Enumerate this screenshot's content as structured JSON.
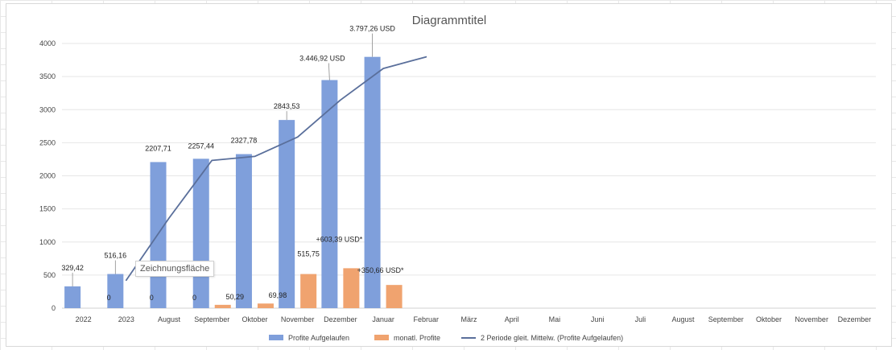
{
  "chart_data": {
    "type": "bar",
    "title": "Diagrammtitel",
    "categories": [
      "2022",
      "2023",
      "August",
      "September",
      "Oktober",
      "November",
      "Dezember",
      "Januar",
      "Februar",
      "März",
      "April",
      "Mai",
      "Juni",
      "Juli",
      "August",
      "September",
      "Oktober",
      "November",
      "Dezember"
    ],
    "ylim": [
      0,
      4000
    ],
    "yticks": [
      0,
      500,
      1000,
      1500,
      2000,
      2500,
      3000,
      3500,
      4000
    ],
    "grid": true,
    "legend_position": "bottom",
    "series": [
      {
        "name": "Profite Aufgelaufen",
        "type": "bar",
        "color": "#7f9fdb",
        "values": [
          329.42,
          516.16,
          2207.71,
          2257.44,
          2327.78,
          2843.53,
          3446.92,
          3797.26,
          null,
          null,
          null,
          null,
          null,
          null,
          null,
          null,
          null,
          null,
          null
        ],
        "labels": [
          "329,42",
          "516,16",
          "2207,71",
          "2257,44",
          "2327,78",
          "2843,53",
          "3.446,92 USD",
          "3.797,26 USD",
          null,
          null,
          null,
          null,
          null,
          null,
          null,
          null,
          null,
          null,
          null
        ]
      },
      {
        "name": "monatl. Profite",
        "type": "bar",
        "color": "#f0a36f",
        "values": [
          0,
          0,
          0,
          50.29,
          69.98,
          515.75,
          603.39,
          350.66,
          null,
          null,
          null,
          null,
          null,
          null,
          null,
          null,
          null,
          null,
          null
        ],
        "labels": [
          "0",
          "0",
          "0",
          "50,29",
          "69,98",
          "515,75",
          "+603,39 USD*",
          "+350,66 USD*",
          null,
          null,
          null,
          null,
          null,
          null,
          null,
          null,
          null,
          null,
          null
        ]
      },
      {
        "name": "2 Periode gleit. Mittelw. (Profite Aufgelaufen)",
        "type": "line",
        "color": "#5a6f9b",
        "values": [
          null,
          422.79,
          1361.94,
          2232.58,
          2292.61,
          2585.66,
          3145.23,
          3622.09,
          3797.26,
          null,
          null,
          null,
          null,
          null,
          null,
          null,
          null,
          null,
          null
        ]
      }
    ]
  },
  "tooltip": {
    "label": "Zeichnungsfläche"
  }
}
